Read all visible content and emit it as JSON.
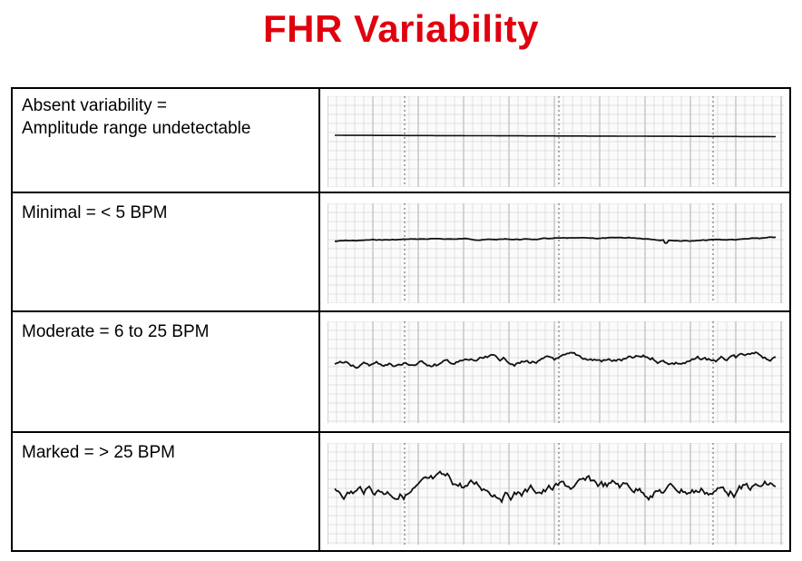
{
  "title": "FHR Variability",
  "rows": [
    {
      "label_line1": "Absent variability =",
      "label_line2": "Amplitude range undetectable",
      "variability_bpm_max": 0
    },
    {
      "label_line1": "Minimal = < 5 BPM",
      "label_line2": "",
      "variability_bpm_max": 4
    },
    {
      "label_line1": "Moderate = 6 to 25 BPM",
      "label_line2": "",
      "variability_bpm_max": 20
    },
    {
      "label_line1": "Marked = > 25 BPM",
      "label_line2": "",
      "variability_bpm_max": 40
    }
  ],
  "colors": {
    "title": "#e0000f",
    "grid": "#c8c8c8",
    "grid_major": "#9a9a9a",
    "trace": "#111111",
    "border": "#000000"
  }
}
